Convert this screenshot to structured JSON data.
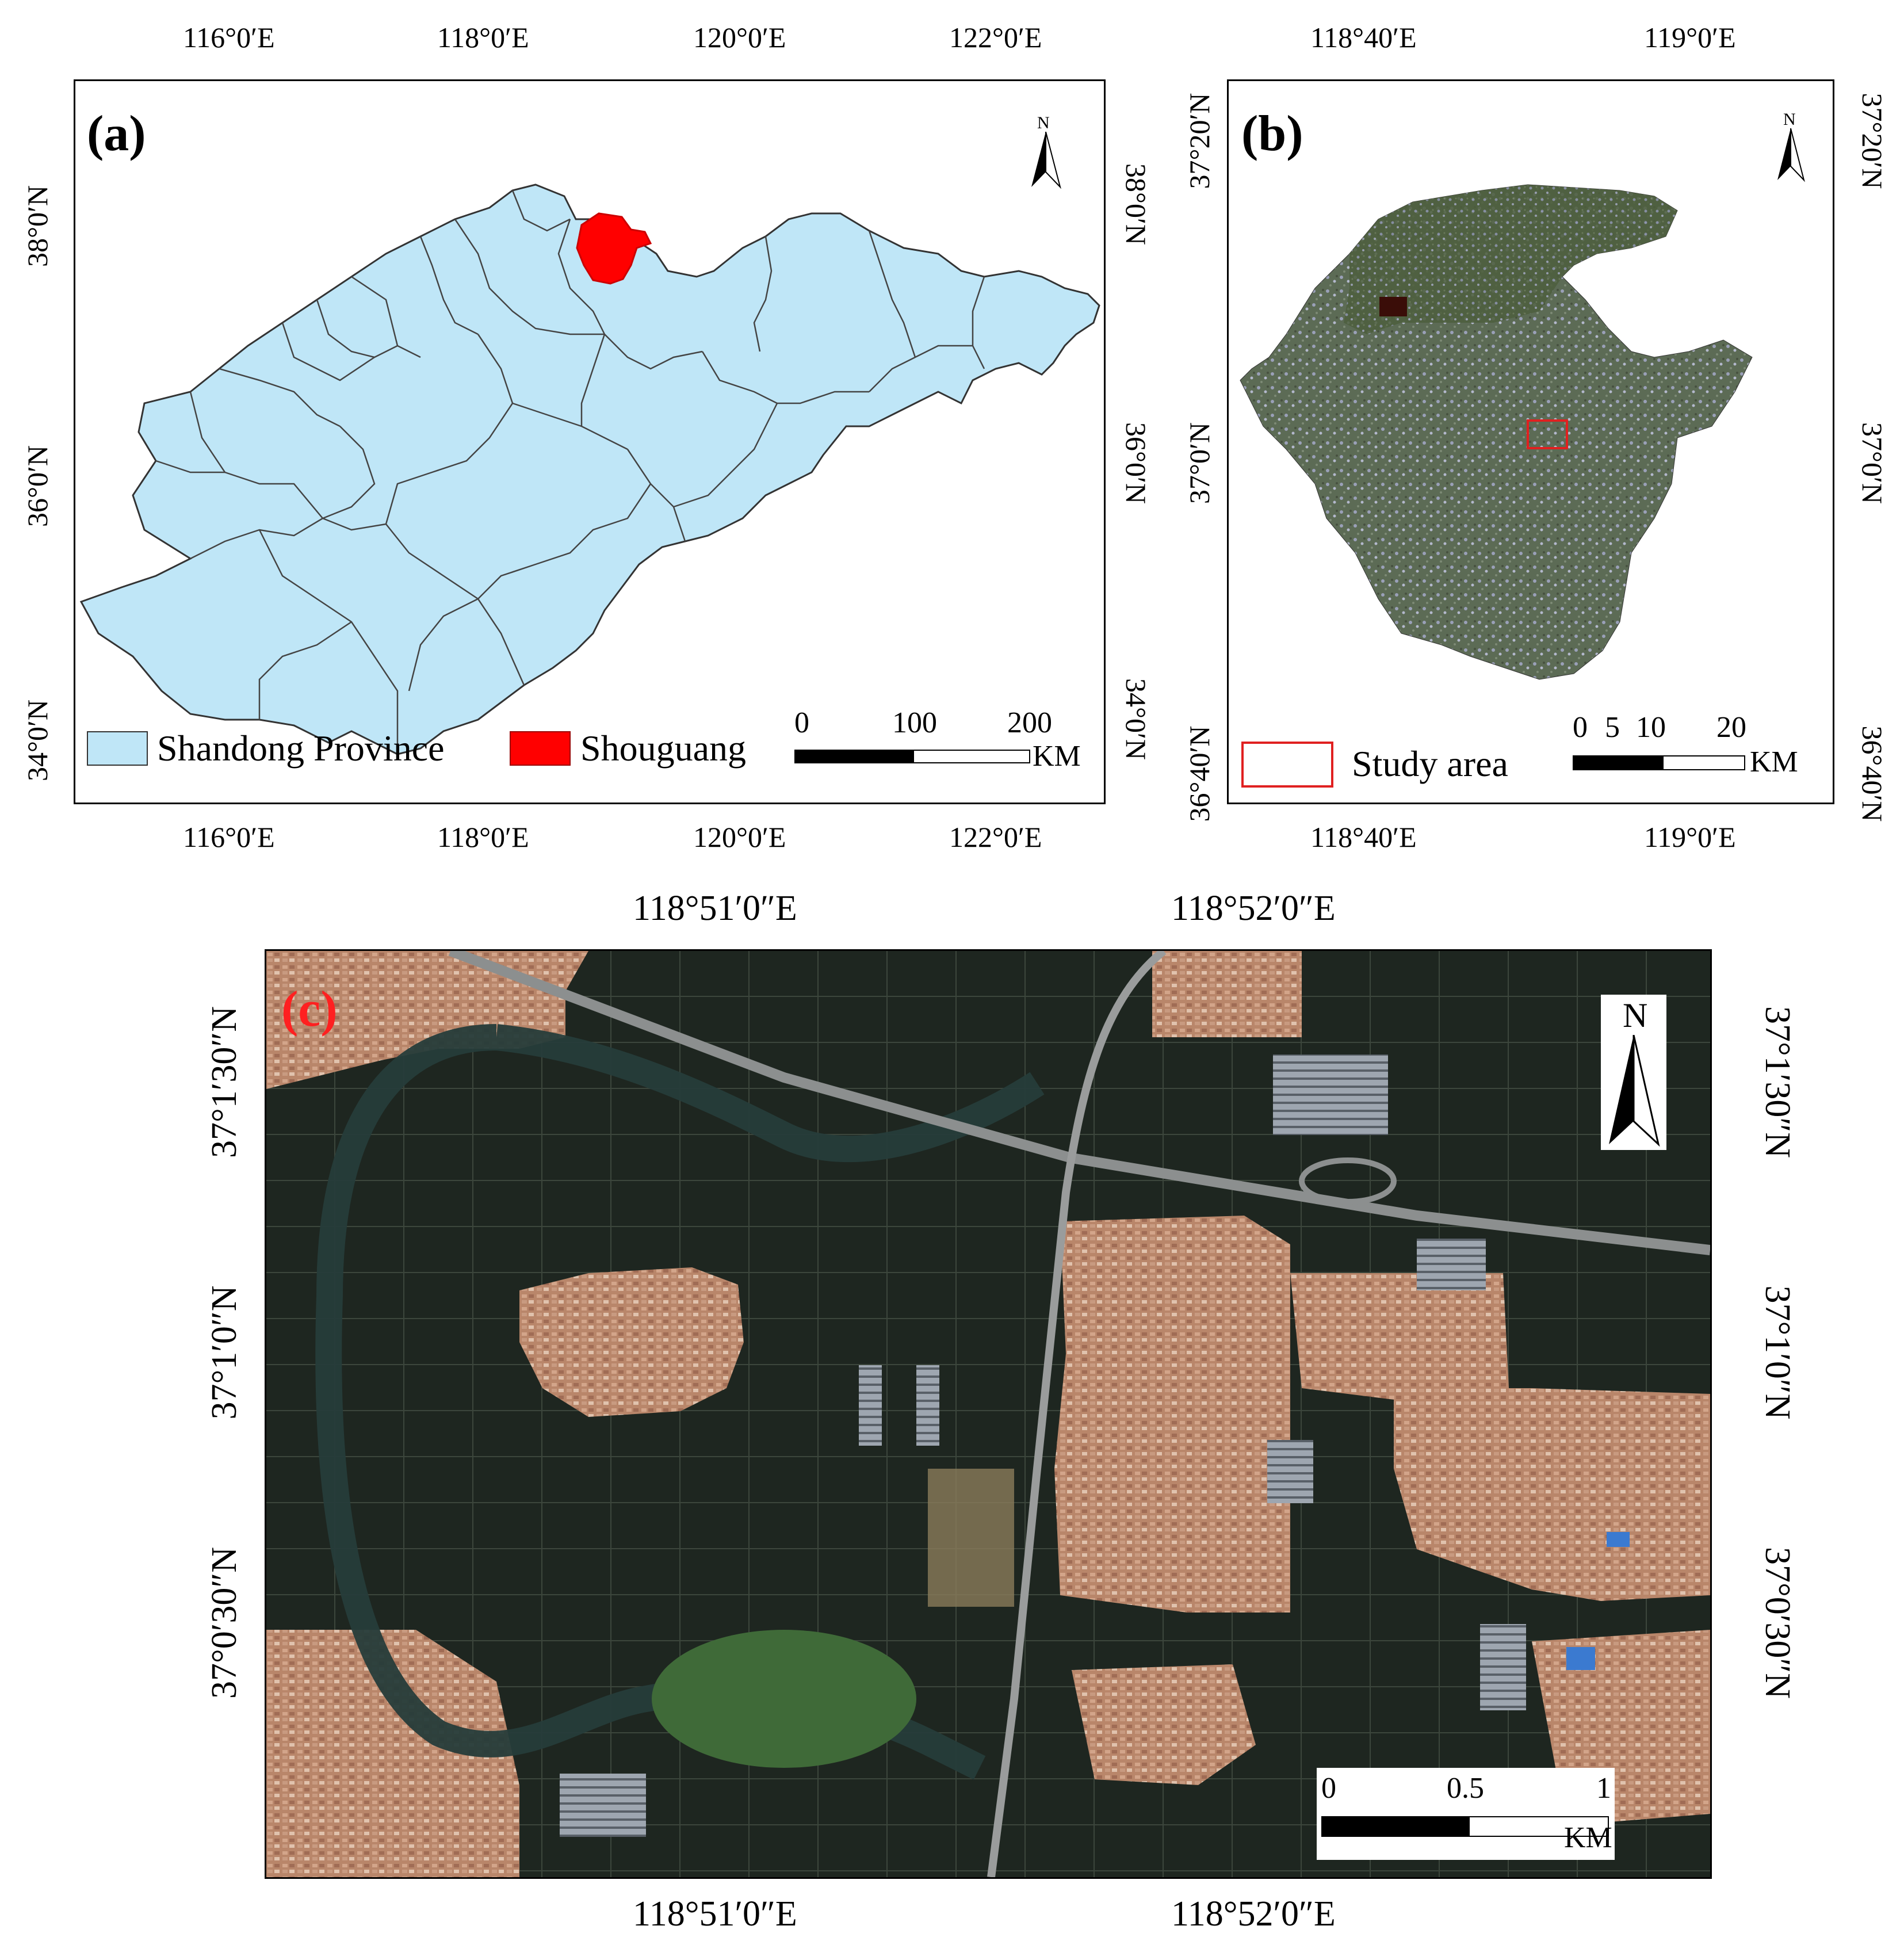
{
  "panel_a": {
    "label": "(a)",
    "north": "N",
    "x_ticks": [
      "116°0′E",
      "118°0′E",
      "120°0′E",
      "122°0′E"
    ],
    "y_ticks_left": [
      "38°0′N",
      "36°0′N",
      "34°0′N"
    ],
    "y_ticks_right": [
      "38°0′N",
      "36°0′N",
      "34°0′N"
    ],
    "legend": [
      {
        "label": "Shandong Province",
        "color": "#bfe6f7"
      },
      {
        "label": "Shouguang",
        "color": "#ff0000"
      }
    ],
    "scale": {
      "ticks": [
        "0",
        "100",
        "200"
      ],
      "unit": "KM"
    }
  },
  "panel_b": {
    "label": "(b)",
    "north": "N",
    "x_ticks": [
      "118°40′E",
      "119°0′E"
    ],
    "y_ticks_left": [
      "37°20′N",
      "37°0′N",
      "36°40′N"
    ],
    "y_ticks_right": [
      "37°20′N",
      "37°0′N",
      "36°40′N"
    ],
    "legend": [
      {
        "label": "Study area",
        "color": "#e02020"
      }
    ],
    "scale": {
      "ticks": [
        "0",
        "5",
        "10",
        "20"
      ],
      "unit": "KM"
    }
  },
  "panel_c": {
    "label": "(c)",
    "north": "N",
    "x_ticks": [
      "118°51′0″E",
      "118°52′0″E"
    ],
    "y_ticks_left": [
      "37°1′30″N",
      "37°1′0″N",
      "37°0′30″N"
    ],
    "y_ticks_right": [
      "37°1′30″N",
      "37°1′0″N",
      "37°0′30″N"
    ],
    "scale": {
      "ticks": [
        "0",
        "0.5",
        "1"
      ],
      "unit": "KM"
    }
  }
}
